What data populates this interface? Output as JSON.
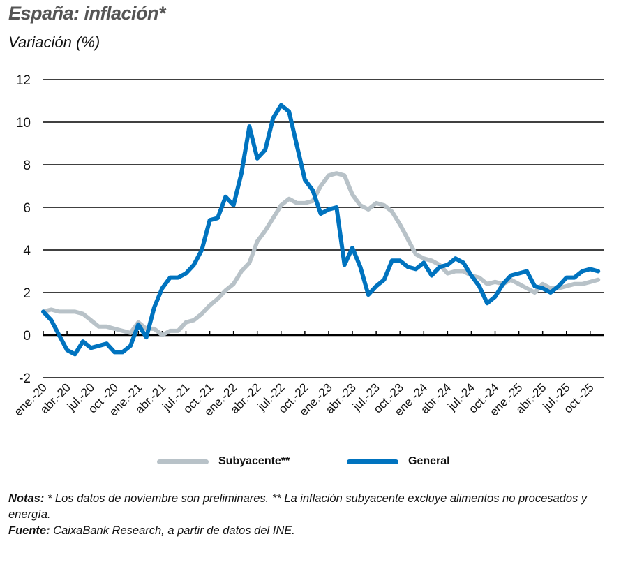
{
  "header": {
    "title": "España: inflación*",
    "subtitle": "Variación (%)"
  },
  "legend": {
    "items": [
      {
        "label": "Subyacente**",
        "color": "#B8C2C8"
      },
      {
        "label": "General",
        "color": "#0073BF"
      }
    ]
  },
  "notes": {
    "notas_label": "Notas:",
    "notas_text": " * Los datos de noviembre son preliminares. ** La inflación subyacente excluye alimentos no procesados y energía.",
    "fuente_label": "Fuente:",
    "fuente_text": " CaixaBank Research, a partir de datos del INE."
  },
  "chart_data": {
    "type": "line",
    "title": "España: inflación*",
    "subtitle": "Variación (%)",
    "xlabel": "",
    "ylabel": "Variación (%)",
    "ylim": [
      -2,
      12
    ],
    "yticks": [
      12,
      10,
      8,
      6,
      4,
      2,
      0,
      -2
    ],
    "grid": true,
    "legend_position": "bottom",
    "x_tick_labels": [
      "ene.-20",
      "abr.-20",
      "jul.-20",
      "oct.-20",
      "ene.-21",
      "abr.-21",
      "jul.-21",
      "oct.-21",
      "ene.-22",
      "abr.-22",
      "jul.-22",
      "oct.-22",
      "ene.-23",
      "abr.-23",
      "jul.-23",
      "oct.-23",
      "ene.-24",
      "abr.-24",
      "jul.-24",
      "oct.-24",
      "ene.-25",
      "abr.-25",
      "jul.-25",
      "oct.-25"
    ],
    "x_start": "ene.-20",
    "x_end": "nov.-25",
    "frequency": "monthly",
    "series": [
      {
        "name": "Subyacente**",
        "color": "#B8C2C8",
        "values": [
          1.1,
          1.2,
          1.1,
          1.1,
          1.1,
          1.0,
          0.7,
          0.4,
          0.4,
          0.3,
          0.2,
          0.1,
          0.6,
          0.3,
          0.3,
          0.0,
          0.2,
          0.2,
          0.6,
          0.7,
          1.0,
          1.4,
          1.7,
          2.1,
          2.4,
          3.0,
          3.4,
          4.4,
          4.9,
          5.5,
          6.1,
          6.4,
          6.2,
          6.2,
          6.3,
          7.0,
          7.5,
          7.6,
          7.5,
          6.6,
          6.1,
          5.9,
          6.2,
          6.1,
          5.8,
          5.2,
          4.5,
          3.8,
          3.6,
          3.5,
          3.3,
          2.9,
          3.0,
          3.0,
          2.8,
          2.7,
          2.4,
          2.5,
          2.4,
          2.6,
          2.4,
          2.2,
          2.0,
          2.4,
          2.2,
          2.2,
          2.3,
          2.4,
          2.4,
          2.5,
          2.6
        ]
      },
      {
        "name": "General",
        "color": "#0073BF",
        "values": [
          1.1,
          0.7,
          0.0,
          -0.7,
          -0.9,
          -0.3,
          -0.6,
          -0.5,
          -0.4,
          -0.8,
          -0.8,
          -0.5,
          0.5,
          -0.1,
          1.3,
          2.2,
          2.7,
          2.7,
          2.9,
          3.3,
          4.0,
          5.4,
          5.5,
          6.5,
          6.1,
          7.6,
          9.8,
          8.3,
          8.7,
          10.2,
          10.8,
          10.5,
          8.9,
          7.3,
          6.8,
          5.7,
          5.9,
          6.0,
          3.3,
          4.1,
          3.2,
          1.9,
          2.3,
          2.6,
          3.5,
          3.5,
          3.2,
          3.1,
          3.4,
          2.8,
          3.2,
          3.3,
          3.6,
          3.4,
          2.8,
          2.3,
          1.5,
          1.8,
          2.4,
          2.8,
          2.9,
          3.0,
          2.3,
          2.2,
          2.0,
          2.3,
          2.7,
          2.7,
          3.0,
          3.1,
          3.0
        ]
      }
    ]
  }
}
